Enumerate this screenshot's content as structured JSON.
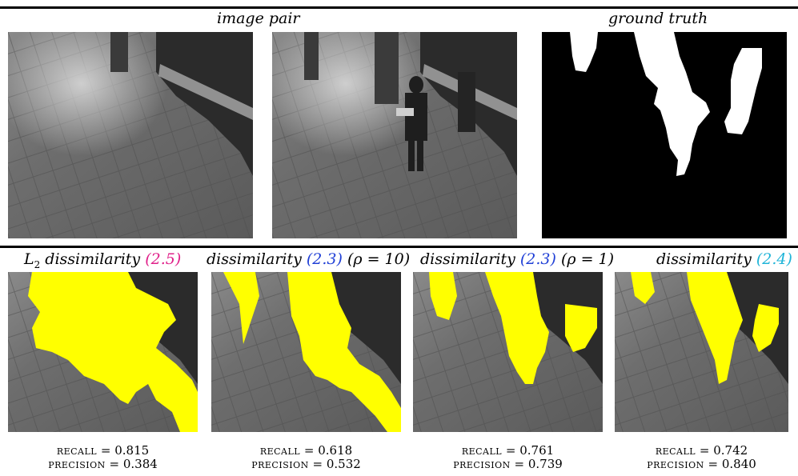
{
  "top_row": {
    "image_pair_caption": "image pair",
    "ground_truth_caption": "ground truth"
  },
  "results": [
    {
      "prefix": "L",
      "sub": "2",
      "label": " dissimilarity ",
      "ref": "(2.5)",
      "ref_color": "#e0208a",
      "suffix": "",
      "recall_label": "recall",
      "recall": "= 0.815",
      "precision_label": "precision",
      "precision": "= 0.384"
    },
    {
      "prefix": "",
      "sub": "",
      "label": "dissimilarity ",
      "ref": "(2.3)",
      "ref_color": "#1f3fd6",
      "suffix": " (ρ = 10)",
      "recall_label": "recall",
      "recall": "= 0.618",
      "precision_label": "precision",
      "precision": "= 0.532"
    },
    {
      "prefix": "",
      "sub": "",
      "label": "dissimilarity ",
      "ref": "(2.3)",
      "ref_color": "#1f3fd6",
      "suffix": " (ρ = 1)",
      "recall_label": "recall",
      "recall": "= 0.761",
      "precision_label": "precision",
      "precision": "= 0.739"
    },
    {
      "prefix": "",
      "sub": "",
      "label": "dissimilarity ",
      "ref": "(2.4)",
      "ref_color": "#1fb4d8",
      "suffix": "",
      "recall_label": "recall",
      "recall": "= 0.742",
      "precision_label": "precision",
      "precision": "= 0.840"
    }
  ],
  "colors": {
    "detection": "#ffff00",
    "ground_truth_fg": "#ffffff",
    "ground_truth_bg": "#000000"
  }
}
